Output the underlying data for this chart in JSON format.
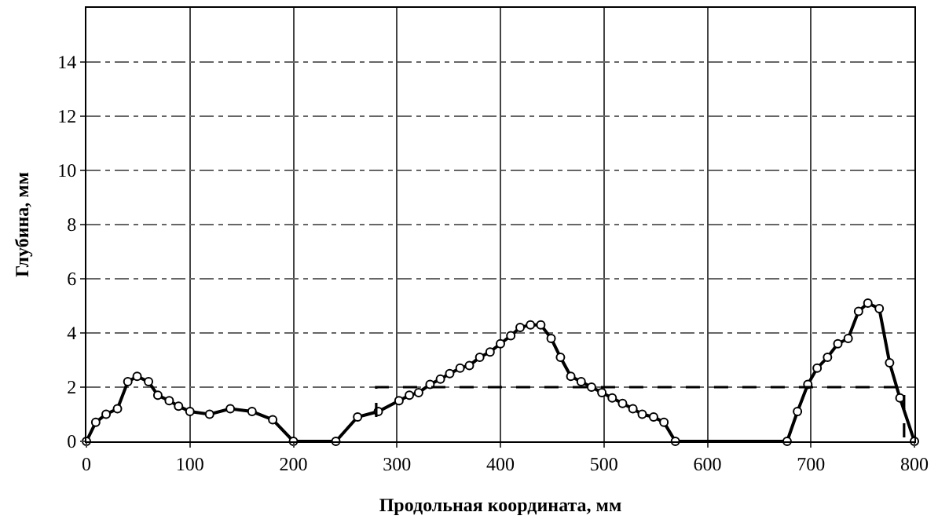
{
  "chart_data": {
    "type": "line",
    "xlabel": "Продольная координата, мм",
    "ylabel": "Глубина, мм",
    "xlim": [
      0,
      800
    ],
    "xticks": [
      0,
      100,
      200,
      300,
      400,
      500,
      600,
      700,
      800
    ],
    "ylim": [
      0,
      16
    ],
    "yticks": [
      0,
      2,
      4,
      6,
      8,
      10,
      12,
      14
    ],
    "grid": true,
    "series": [
      {
        "color": "#000000",
        "marker": "circle",
        "line_style": "solid",
        "x": [
          0,
          9,
          19,
          30,
          40,
          49,
          60,
          69,
          80,
          89,
          100,
          119,
          139,
          160,
          180,
          200,
          241,
          262,
          282,
          302,
          312,
          321,
          332,
          342,
          351,
          361,
          370,
          380,
          390,
          400,
          410,
          419,
          429,
          439,
          449,
          458,
          468,
          478,
          488,
          498,
          508,
          518,
          528,
          537,
          548,
          558,
          569,
          677,
          687,
          697,
          706,
          716,
          726,
          736,
          746,
          755,
          766,
          776,
          786,
          800
        ],
        "values": [
          0,
          0.7,
          1.0,
          1.2,
          2.2,
          2.4,
          2.2,
          1.7,
          1.5,
          1.3,
          1.1,
          1.0,
          1.2,
          1.1,
          0.8,
          0,
          0,
          0.9,
          1.1,
          1.5,
          1.7,
          1.8,
          2.1,
          2.3,
          2.5,
          2.7,
          2.8,
          3.1,
          3.3,
          3.6,
          3.9,
          4.2,
          4.3,
          4.3,
          3.8,
          3.1,
          2.4,
          2.2,
          2.0,
          1.8,
          1.6,
          1.4,
          1.2,
          1.0,
          0.9,
          0.7,
          0,
          0,
          1.1,
          2.1,
          2.7,
          3.1,
          3.6,
          3.8,
          4.8,
          5.1,
          4.9,
          2.9,
          1.6,
          0
        ]
      },
      {
        "color": "#000000",
        "marker": "none",
        "line_style": "dashed",
        "x": [
          280,
          280,
          790,
          790
        ],
        "values": [
          0.9,
          2.0,
          2.0,
          0
        ]
      }
    ]
  }
}
